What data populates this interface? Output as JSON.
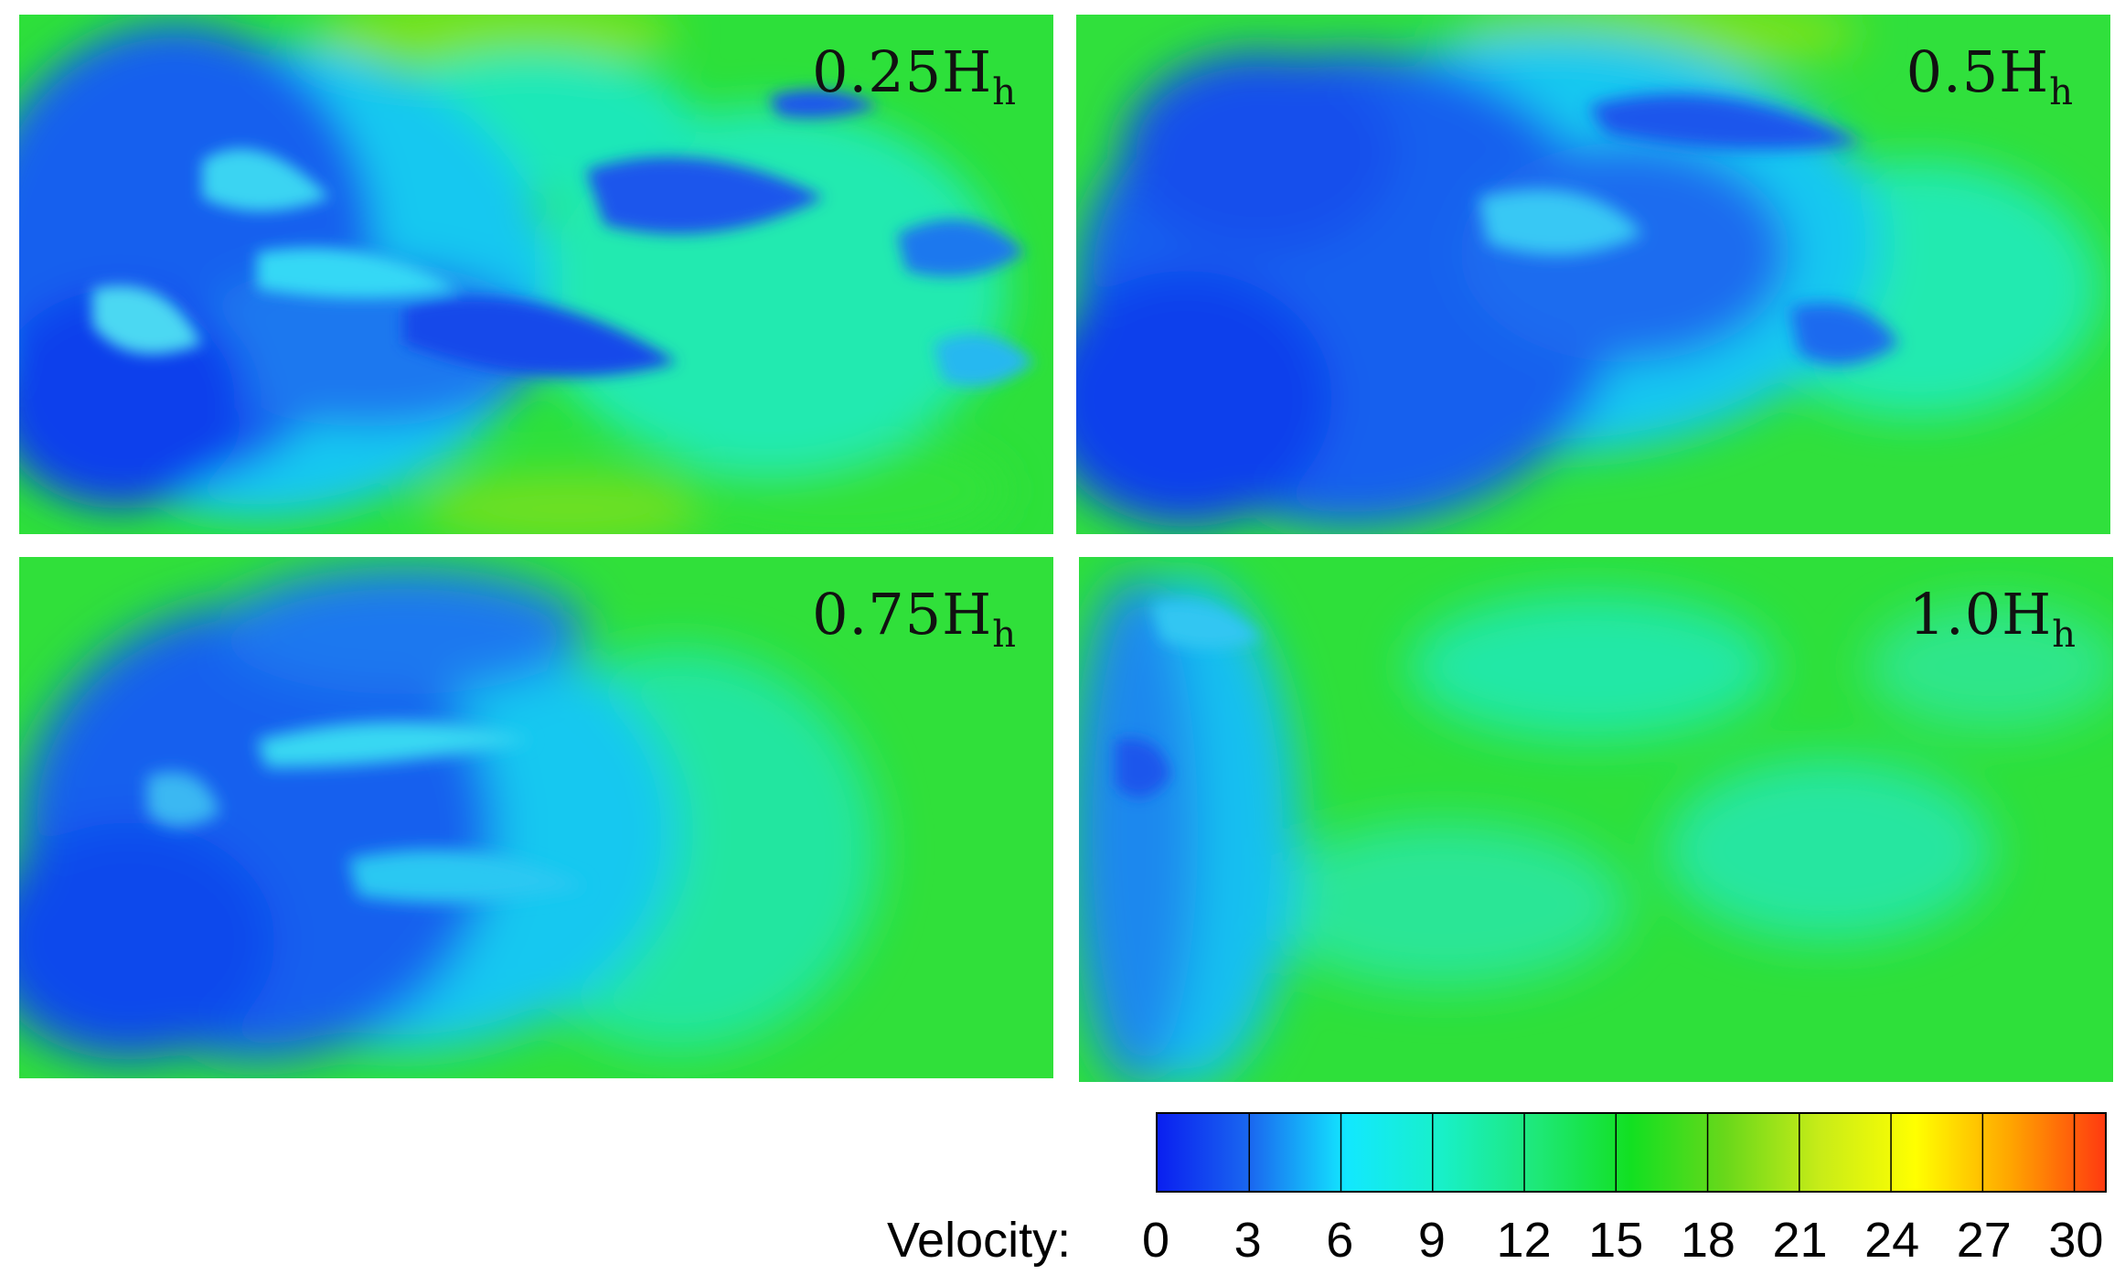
{
  "panels": [
    {
      "label_main": "0.25H",
      "label_sub": "h"
    },
    {
      "label_main": "0.5H",
      "label_sub": "h"
    },
    {
      "label_main": "0.75H",
      "label_sub": "h"
    },
    {
      "label_main": "1.0H",
      "label_sub": "h"
    }
  ],
  "colorbar": {
    "label": "Velocity:",
    "min": 0,
    "max": 31,
    "ticks": [
      "0",
      "3",
      "6",
      "9",
      "12",
      "15",
      "18",
      "21",
      "24",
      "27",
      "30"
    ],
    "tick_values": [
      0,
      3,
      6,
      9,
      12,
      15,
      18,
      21,
      24,
      27,
      30
    ],
    "colors": [
      "#0a1ff0",
      "#1a6af0",
      "#12e8ff",
      "#18f0c8",
      "#1ee878",
      "#12e021",
      "#6ad81a",
      "#c8ec18",
      "#ffff00",
      "#ffa500",
      "#ff3a10"
    ]
  },
  "chart_data": {
    "type": "heatmap",
    "title": "",
    "xlabel": "",
    "ylabel": "",
    "panels": [
      "0.25Hh",
      "0.5Hh",
      "0.75Hh",
      "1.0Hh"
    ],
    "colorbar_label": "Velocity:",
    "value_range": [
      0,
      31
    ],
    "colorbar_ticks": [
      0,
      3,
      6,
      9,
      12,
      15,
      18,
      21,
      24,
      27,
      30
    ],
    "layout": "2x2 grid",
    "legend_position": "bottom-right"
  }
}
